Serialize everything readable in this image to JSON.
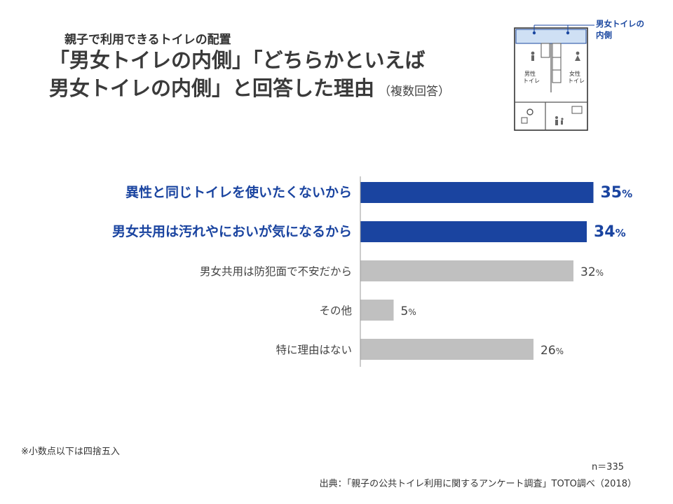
{
  "header": {
    "subtitle": "親子で利用できるトイレの配置",
    "title_line1": "「男女トイレの内側」「どちらかといえば",
    "title_line2": "男女トイレの内側」と回答した理由",
    "title_note": "（複数回答）"
  },
  "inset": {
    "label_line1": "男女トイレの",
    "label_line2": "内側",
    "men_line1": "男性",
    "men_line2": "トイレ",
    "women_line1": "女性",
    "women_line2": "トイレ",
    "accent_color": "#1a47a0"
  },
  "chart_data": {
    "type": "bar",
    "orientation": "horizontal",
    "title": "",
    "xlabel": "",
    "ylabel": "",
    "xlim": [
      0,
      40
    ],
    "value_suffix": "%",
    "categories": [
      "異性と同じトイレを使いたくないから",
      "男女共用は汚れやにおいが気になるから",
      "男女共用は防犯面で不安だから",
      "その他",
      "特に理由はない"
    ],
    "values": [
      35,
      34,
      32,
      5,
      26
    ],
    "highlighted": [
      true,
      true,
      false,
      false,
      false
    ],
    "colors": {
      "highlight": "#1a44a0",
      "normal": "#c0c0c0"
    }
  },
  "footer": {
    "footnote": "※小数点以下は四捨五入",
    "sample": "n＝335",
    "source": "出典：「親子の公共トイレ利用に関するアンケート調査」TOTO調べ（2018）"
  }
}
